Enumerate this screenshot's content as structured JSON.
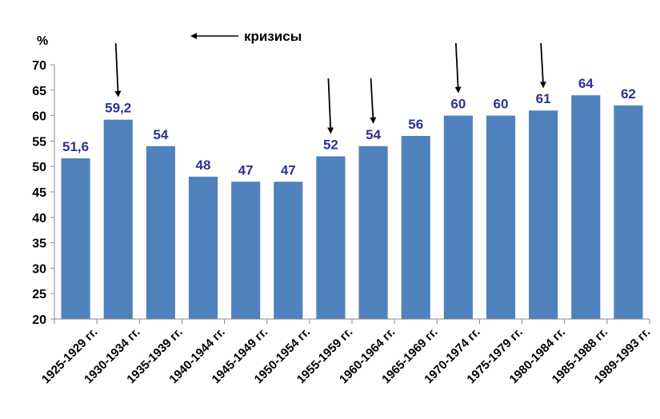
{
  "chart_data": {
    "type": "bar",
    "ylabel": "%",
    "ylim": [
      20,
      70
    ],
    "yticks": [
      20,
      25,
      30,
      35,
      40,
      45,
      50,
      55,
      60,
      65,
      70
    ],
    "categories": [
      "1925-1929 гг.",
      "1930-1934 гг.",
      "1935-1939 гг.",
      "1940-1944 гг.",
      "1945-1949 гг.",
      "1950-1954 гг.",
      "1955-1959 гг.",
      "1960-1964 гг.",
      "1965-1969 гг.",
      "1970-1974 гг.",
      "1975-1979 гг.",
      "1980-1984 гг.",
      "1985-1988 гг.",
      "1989-1993 гг."
    ],
    "values": [
      51.6,
      59.2,
      54,
      48,
      47,
      47,
      52,
      54,
      56,
      60,
      60,
      61,
      64,
      62
    ],
    "data_labels": [
      "51,6",
      "59,2",
      "54",
      "48",
      "47",
      "47",
      "52",
      "54",
      "56",
      "60",
      "60",
      "61",
      "64",
      "62"
    ],
    "crisis_periods": [
      "1930-1934 гг.",
      "1955-1959 гг.",
      "1960-1964 гг.",
      "1970-1974 гг.",
      "1980-1984 гг."
    ],
    "legend": {
      "label": "кризисы",
      "placement": "top-center"
    },
    "grid": false,
    "colors": {
      "bar": "#4F81BD",
      "label": "#2E3192",
      "axis": "#888888",
      "arrow": "#000000"
    }
  }
}
